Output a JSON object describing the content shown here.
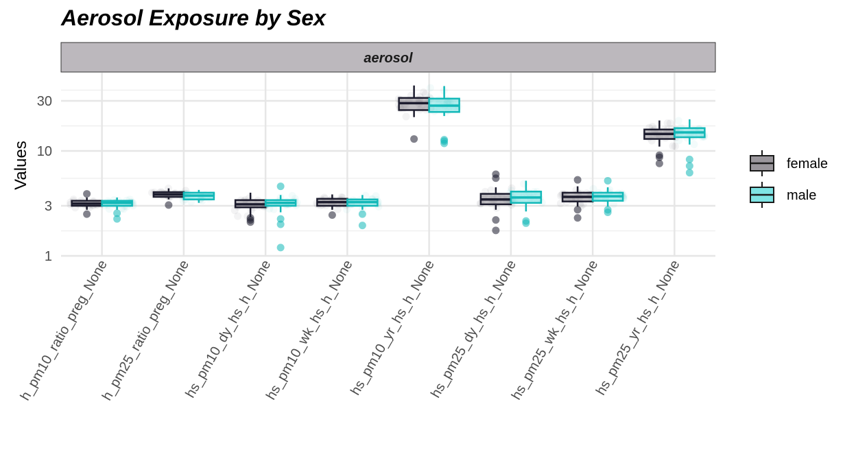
{
  "chart_data": {
    "type": "box",
    "title": "Aerosol Exposure by Sex",
    "facet": "aerosol",
    "ylabel": "Values",
    "xlabel": "",
    "yscale": "log10",
    "ylim": [
      1,
      48
    ],
    "yticks": [
      1,
      3,
      10,
      30
    ],
    "grid": true,
    "legend": {
      "position": "right",
      "entries": [
        {
          "name": "female",
          "color": "#1c1c2e",
          "fill": "#9a969c"
        },
        {
          "name": "male",
          "color": "#12b8b8",
          "fill": "#7fe3e3"
        }
      ]
    },
    "categories": [
      "h_pm10_ratio_preg_None",
      "h_pm25_ratio_preg_None",
      "hs_pm10_dy_hs_h_None",
      "hs_pm10_wk_hs_h_None",
      "hs_pm10_yr_hs_h_None",
      "hs_pm25_dy_hs_h_None",
      "hs_pm25_wk_hs_h_None",
      "hs_pm25_yr_hs_h_None"
    ],
    "series": [
      {
        "name": "female",
        "boxes": [
          {
            "whisker_low": 2.75,
            "q1": 3.0,
            "median": 3.15,
            "q3": 3.35,
            "whisker_high": 3.6,
            "outliers": [
              2.5,
              3.9
            ]
          },
          {
            "whisker_low": 3.45,
            "q1": 3.65,
            "median": 3.85,
            "q3": 4.05,
            "whisker_high": 4.4,
            "outliers": [
              3.05
            ]
          },
          {
            "whisker_low": 2.35,
            "q1": 2.9,
            "median": 3.1,
            "q3": 3.4,
            "whisker_high": 4.0,
            "outliers": [
              2.1,
              2.2,
              2.3
            ]
          },
          {
            "whisker_low": 2.75,
            "q1": 3.0,
            "median": 3.25,
            "q3": 3.5,
            "whisker_high": 3.85,
            "outliers": [
              2.45
            ]
          },
          {
            "whisker_low": 21.0,
            "q1": 24.5,
            "median": 28.5,
            "q3": 32.0,
            "whisker_high": 42.0,
            "outliers": [
              13.0
            ]
          },
          {
            "whisker_low": 2.75,
            "q1": 3.1,
            "median": 3.45,
            "q3": 3.9,
            "whisker_high": 4.5,
            "outliers": [
              1.75,
              2.2,
              5.5,
              6.0
            ]
          },
          {
            "whisker_low": 2.95,
            "q1": 3.3,
            "median": 3.65,
            "q3": 4.0,
            "whisker_high": 4.6,
            "outliers": [
              2.3,
              2.75,
              5.3
            ]
          },
          {
            "whisker_low": 11.0,
            "q1": 13.0,
            "median": 14.5,
            "q3": 16.0,
            "whisker_high": 19.5,
            "outliers": [
              7.6,
              8.7,
              9.1
            ]
          }
        ]
      },
      {
        "name": "male",
        "boxes": [
          {
            "whisker_low": 2.75,
            "q1": 3.0,
            "median": 3.2,
            "q3": 3.35,
            "whisker_high": 3.6,
            "outliers": [
              2.25,
              2.55
            ]
          },
          {
            "whisker_low": 3.2,
            "q1": 3.45,
            "median": 3.75,
            "q3": 4.0,
            "whisker_high": 4.25,
            "outliers": []
          },
          {
            "whisker_low": 2.6,
            "q1": 3.0,
            "median": 3.2,
            "q3": 3.4,
            "whisker_high": 3.8,
            "outliers": [
              1.2,
              2.0,
              2.25,
              4.6
            ]
          },
          {
            "whisker_low": 2.75,
            "q1": 3.0,
            "median": 3.25,
            "q3": 3.45,
            "whisker_high": 3.8,
            "outliers": [
              1.95,
              2.5
            ]
          },
          {
            "whisker_low": 21.5,
            "q1": 23.5,
            "median": 27.0,
            "q3": 31.5,
            "whisker_high": 41.5,
            "outliers": [
              11.8,
              12.4,
              12.8
            ]
          },
          {
            "whisker_low": 2.65,
            "q1": 3.2,
            "median": 3.6,
            "q3": 4.1,
            "whisker_high": 5.2,
            "outliers": [
              2.05,
              2.15
            ]
          },
          {
            "whisker_low": 2.95,
            "q1": 3.35,
            "median": 3.7,
            "q3": 4.0,
            "whisker_high": 4.5,
            "outliers": [
              2.6,
              2.75,
              5.2
            ]
          },
          {
            "whisker_low": 11.5,
            "q1": 13.5,
            "median": 15.0,
            "q3": 16.5,
            "whisker_high": 20.0,
            "outliers": [
              6.2,
              7.2,
              8.3
            ]
          }
        ]
      }
    ]
  }
}
